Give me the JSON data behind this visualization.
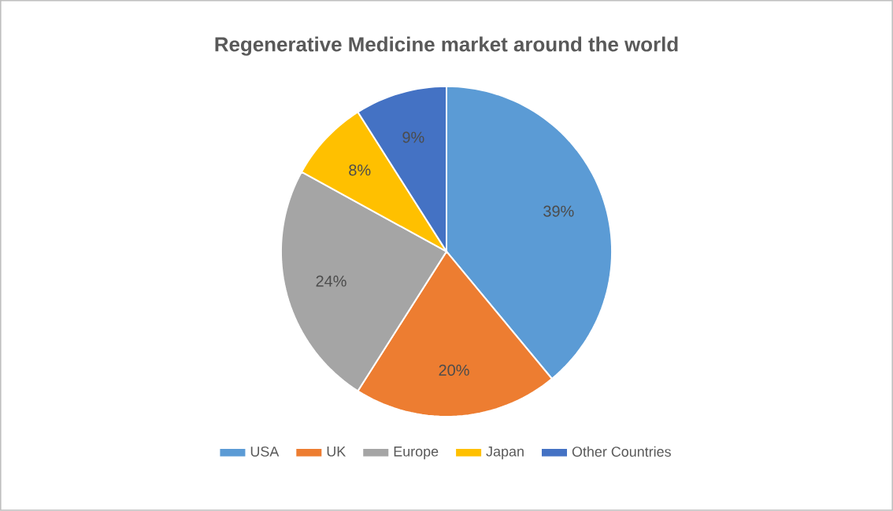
{
  "chart_data": {
    "type": "pie",
    "title": "Regenerative Medicine market around the world",
    "categories": [
      "USA",
      "UK",
      "Europe",
      "Japan",
      "Other Countries"
    ],
    "values": [
      39,
      20,
      24,
      8,
      9
    ],
    "value_labels": [
      "39%",
      "20%",
      "24%",
      "8%",
      "9%"
    ],
    "colors": [
      "#5b9bd5",
      "#ed7d31",
      "#a5a5a5",
      "#ffc000",
      "#4472c4"
    ],
    "legend": "bottom"
  }
}
